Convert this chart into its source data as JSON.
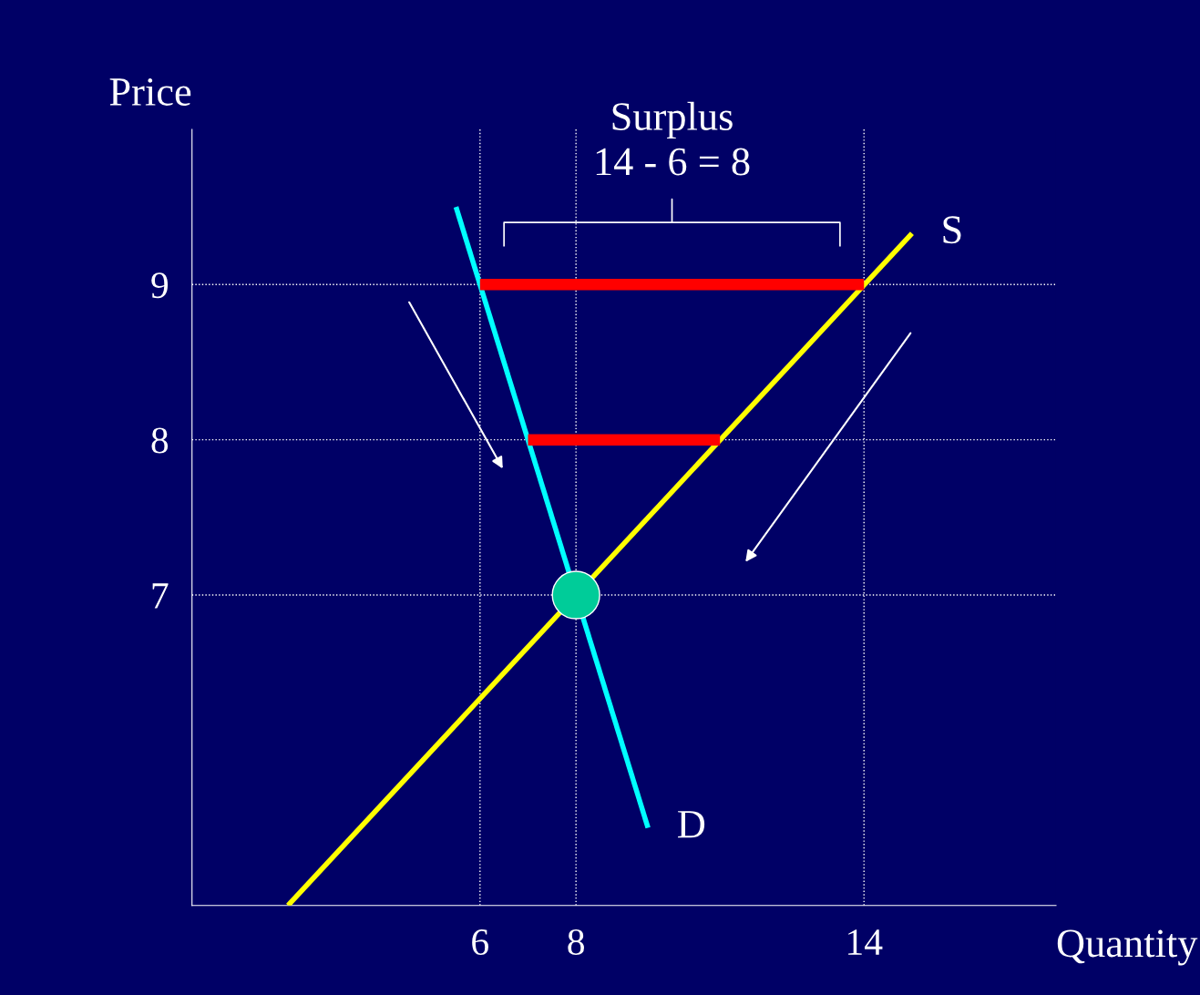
{
  "chart_data": {
    "type": "line",
    "xlabel": "Quantity",
    "ylabel": "Price",
    "xlim": [
      0,
      18
    ],
    "ylim": [
      5,
      10
    ],
    "xticks": [
      6,
      8,
      14
    ],
    "yticks": [
      7,
      8,
      9
    ],
    "series": [
      {
        "name": "S",
        "color": "#ffff00",
        "x": [
          2,
          15
        ],
        "values": [
          5,
          9.33
        ]
      },
      {
        "name": "D",
        "color": "#00ffff",
        "x": [
          5.5,
          9.5
        ],
        "values": [
          9.5,
          5.5
        ]
      },
      {
        "color": "#ff0000",
        "x": [
          6,
          14
        ],
        "values": [
          9,
          9
        ]
      },
      {
        "color": "#ff0000",
        "x": [
          7,
          11
        ],
        "values": [
          8,
          8
        ]
      },
      {
        "type": "scatter",
        "color": "#00cc99",
        "marker": "circle",
        "x": [
          8
        ],
        "values": [
          7
        ]
      }
    ],
    "ref_lines": [
      {
        "axis": "y",
        "value": 9,
        "color": "#ffffff",
        "line_style": "dotted"
      },
      {
        "axis": "y",
        "value": 8,
        "color": "#ffffff",
        "line_style": "dotted"
      },
      {
        "axis": "y",
        "value": 7,
        "color": "#ffffff",
        "line_style": "dotted"
      },
      {
        "axis": "x",
        "value": 6,
        "color": "#ffffff",
        "line_style": "dotted"
      },
      {
        "axis": "x",
        "value": 8,
        "color": "#ffffff",
        "line_style": "dotted"
      },
      {
        "axis": "x",
        "value": 14,
        "color": "#ffffff",
        "line_style": "dotted"
      }
    ],
    "annotations": [
      "Surplus\n14 - 6 = 8"
    ]
  }
}
